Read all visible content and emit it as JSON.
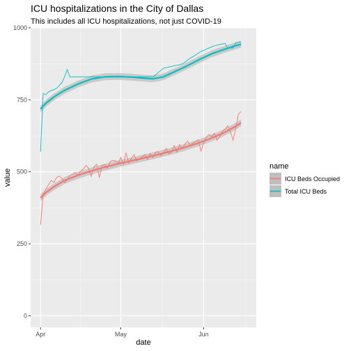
{
  "chart_data": {
    "type": "line",
    "title": "ICU hospitalizations in the City of Dallas",
    "subtitle": "This includes all ICU hospitalizations, not just COVID-19",
    "xlabel": "date",
    "ylabel": "value",
    "x_ticks": [
      {
        "label": "Apr",
        "day": 1
      },
      {
        "label": "May",
        "day": 31
      },
      {
        "label": "Jun",
        "day": 62
      }
    ],
    "xlim": [
      -2.7,
      81.7
    ],
    "ylim": [
      -40,
      1000
    ],
    "y_ticks": [
      0,
      250,
      500,
      750,
      1000
    ],
    "grid": true,
    "legend": {
      "title": "name",
      "placement": "right"
    },
    "series": [
      {
        "name": "ICU Beds Occupied",
        "color": "#f8766d",
        "raw": [
          [
            1,
            316
          ],
          [
            2,
            422
          ],
          [
            3,
            440
          ],
          [
            4,
            455
          ],
          [
            5,
            470
          ],
          [
            6,
            463
          ],
          [
            7,
            480
          ],
          [
            8,
            485
          ],
          [
            9,
            478
          ],
          [
            10,
            462
          ],
          [
            11,
            472
          ],
          [
            12,
            488
          ],
          [
            13,
            492
          ],
          [
            14,
            498
          ],
          [
            15,
            486
          ],
          [
            16,
            502
          ],
          [
            17,
            510
          ],
          [
            18,
            522
          ],
          [
            19,
            512
          ],
          [
            20,
            484
          ],
          [
            21,
            518
          ],
          [
            22,
            526
          ],
          [
            23,
            480
          ],
          [
            24,
            522
          ],
          [
            25,
            525
          ],
          [
            26,
            512
          ],
          [
            27,
            535
          ],
          [
            28,
            540
          ],
          [
            29,
            538
          ],
          [
            30,
            528
          ],
          [
            31,
            550
          ],
          [
            32,
            526
          ],
          [
            33,
            566
          ],
          [
            34,
            530
          ],
          [
            35,
            548
          ],
          [
            36,
            560
          ],
          [
            37,
            538
          ],
          [
            38,
            545
          ],
          [
            39,
            552
          ],
          [
            40,
            560
          ],
          [
            41,
            543
          ],
          [
            42,
            564
          ],
          [
            43,
            550
          ],
          [
            44,
            568
          ],
          [
            45,
            570
          ],
          [
            46,
            556
          ],
          [
            47,
            566
          ],
          [
            48,
            582
          ],
          [
            49,
            562
          ],
          [
            50,
            568
          ],
          [
            51,
            592
          ],
          [
            52,
            568
          ],
          [
            53,
            595
          ],
          [
            54,
            580
          ],
          [
            55,
            597
          ],
          [
            56,
            607
          ],
          [
            57,
            590
          ],
          [
            58,
            600
          ],
          [
            59,
            605
          ],
          [
            60,
            612
          ],
          [
            61,
            572
          ],
          [
            62,
            600
          ],
          [
            63,
            620
          ],
          [
            64,
            630
          ],
          [
            65,
            622
          ],
          [
            66,
            634
          ],
          [
            67,
            610
          ],
          [
            68,
            620
          ],
          [
            69,
            640
          ],
          [
            70,
            648
          ],
          [
            71,
            660
          ],
          [
            72,
            640
          ],
          [
            73,
            610
          ],
          [
            74,
            650
          ],
          [
            75,
            700
          ],
          [
            76,
            710
          ]
        ],
        "smooth": [
          [
            1,
            410
          ],
          [
            3,
            428
          ],
          [
            6,
            448
          ],
          [
            10,
            470
          ],
          [
            15,
            488
          ],
          [
            20,
            503
          ],
          [
            25,
            516
          ],
          [
            30,
            528
          ],
          [
            35,
            538
          ],
          [
            40,
            549
          ],
          [
            45,
            560
          ],
          [
            50,
            572
          ],
          [
            55,
            585
          ],
          [
            60,
            600
          ],
          [
            65,
            617
          ],
          [
            70,
            638
          ],
          [
            74,
            658
          ],
          [
            76,
            670
          ]
        ]
      },
      {
        "name": "Total ICU Beds",
        "color": "#00bfc4",
        "raw": [
          [
            1,
            570
          ],
          [
            2,
            772
          ],
          [
            3,
            768
          ],
          [
            4,
            778
          ],
          [
            5,
            782
          ],
          [
            6,
            785
          ],
          [
            7,
            790
          ],
          [
            8,
            800
          ],
          [
            9,
            810
          ],
          [
            10,
            830
          ],
          [
            11,
            855
          ],
          [
            12,
            830
          ],
          [
            13,
            830
          ],
          [
            14,
            830
          ],
          [
            15,
            830
          ],
          [
            16,
            830
          ],
          [
            17,
            830
          ],
          [
            18,
            830
          ],
          [
            19,
            830
          ],
          [
            20,
            830
          ],
          [
            21,
            830
          ],
          [
            22,
            830
          ],
          [
            23,
            830
          ],
          [
            24,
            830
          ],
          [
            25,
            830
          ],
          [
            26,
            830
          ],
          [
            27,
            830
          ],
          [
            28,
            830
          ],
          [
            29,
            830
          ],
          [
            30,
            830
          ],
          [
            31,
            830
          ],
          [
            32,
            830
          ],
          [
            33,
            830
          ],
          [
            34,
            830
          ],
          [
            35,
            830
          ],
          [
            36,
            830
          ],
          [
            37,
            830
          ],
          [
            38,
            830
          ],
          [
            39,
            830
          ],
          [
            40,
            830
          ],
          [
            41,
            830
          ],
          [
            42,
            830
          ],
          [
            43,
            830
          ],
          [
            44,
            836
          ],
          [
            45,
            845
          ],
          [
            46,
            852
          ],
          [
            47,
            860
          ],
          [
            48,
            862
          ],
          [
            49,
            864
          ],
          [
            50,
            866
          ],
          [
            51,
            868
          ],
          [
            52,
            870
          ],
          [
            53,
            872
          ],
          [
            54,
            875
          ],
          [
            55,
            880
          ],
          [
            56,
            888
          ],
          [
            57,
            895
          ],
          [
            58,
            900
          ],
          [
            59,
            906
          ],
          [
            60,
            912
          ],
          [
            61,
            918
          ],
          [
            62,
            922
          ],
          [
            63,
            926
          ],
          [
            64,
            930
          ],
          [
            65,
            934
          ],
          [
            66,
            937
          ],
          [
            67,
            940
          ],
          [
            68,
            942
          ],
          [
            69,
            944
          ],
          [
            70,
            946
          ],
          [
            71,
            930
          ],
          [
            72,
            930
          ],
          [
            73,
            930
          ],
          [
            74,
            948
          ],
          [
            75,
            950
          ],
          [
            76,
            950
          ]
        ],
        "smooth": [
          [
            1,
            718
          ],
          [
            3,
            738
          ],
          [
            6,
            760
          ],
          [
            10,
            783
          ],
          [
            15,
            805
          ],
          [
            20,
            822
          ],
          [
            25,
            830
          ],
          [
            30,
            831
          ],
          [
            35,
            829
          ],
          [
            40,
            825
          ],
          [
            43,
            823
          ],
          [
            47,
            830
          ],
          [
            50,
            843
          ],
          [
            55,
            864
          ],
          [
            60,
            888
          ],
          [
            65,
            910
          ],
          [
            70,
            926
          ],
          [
            74,
            938
          ],
          [
            76,
            943
          ]
        ]
      }
    ]
  }
}
